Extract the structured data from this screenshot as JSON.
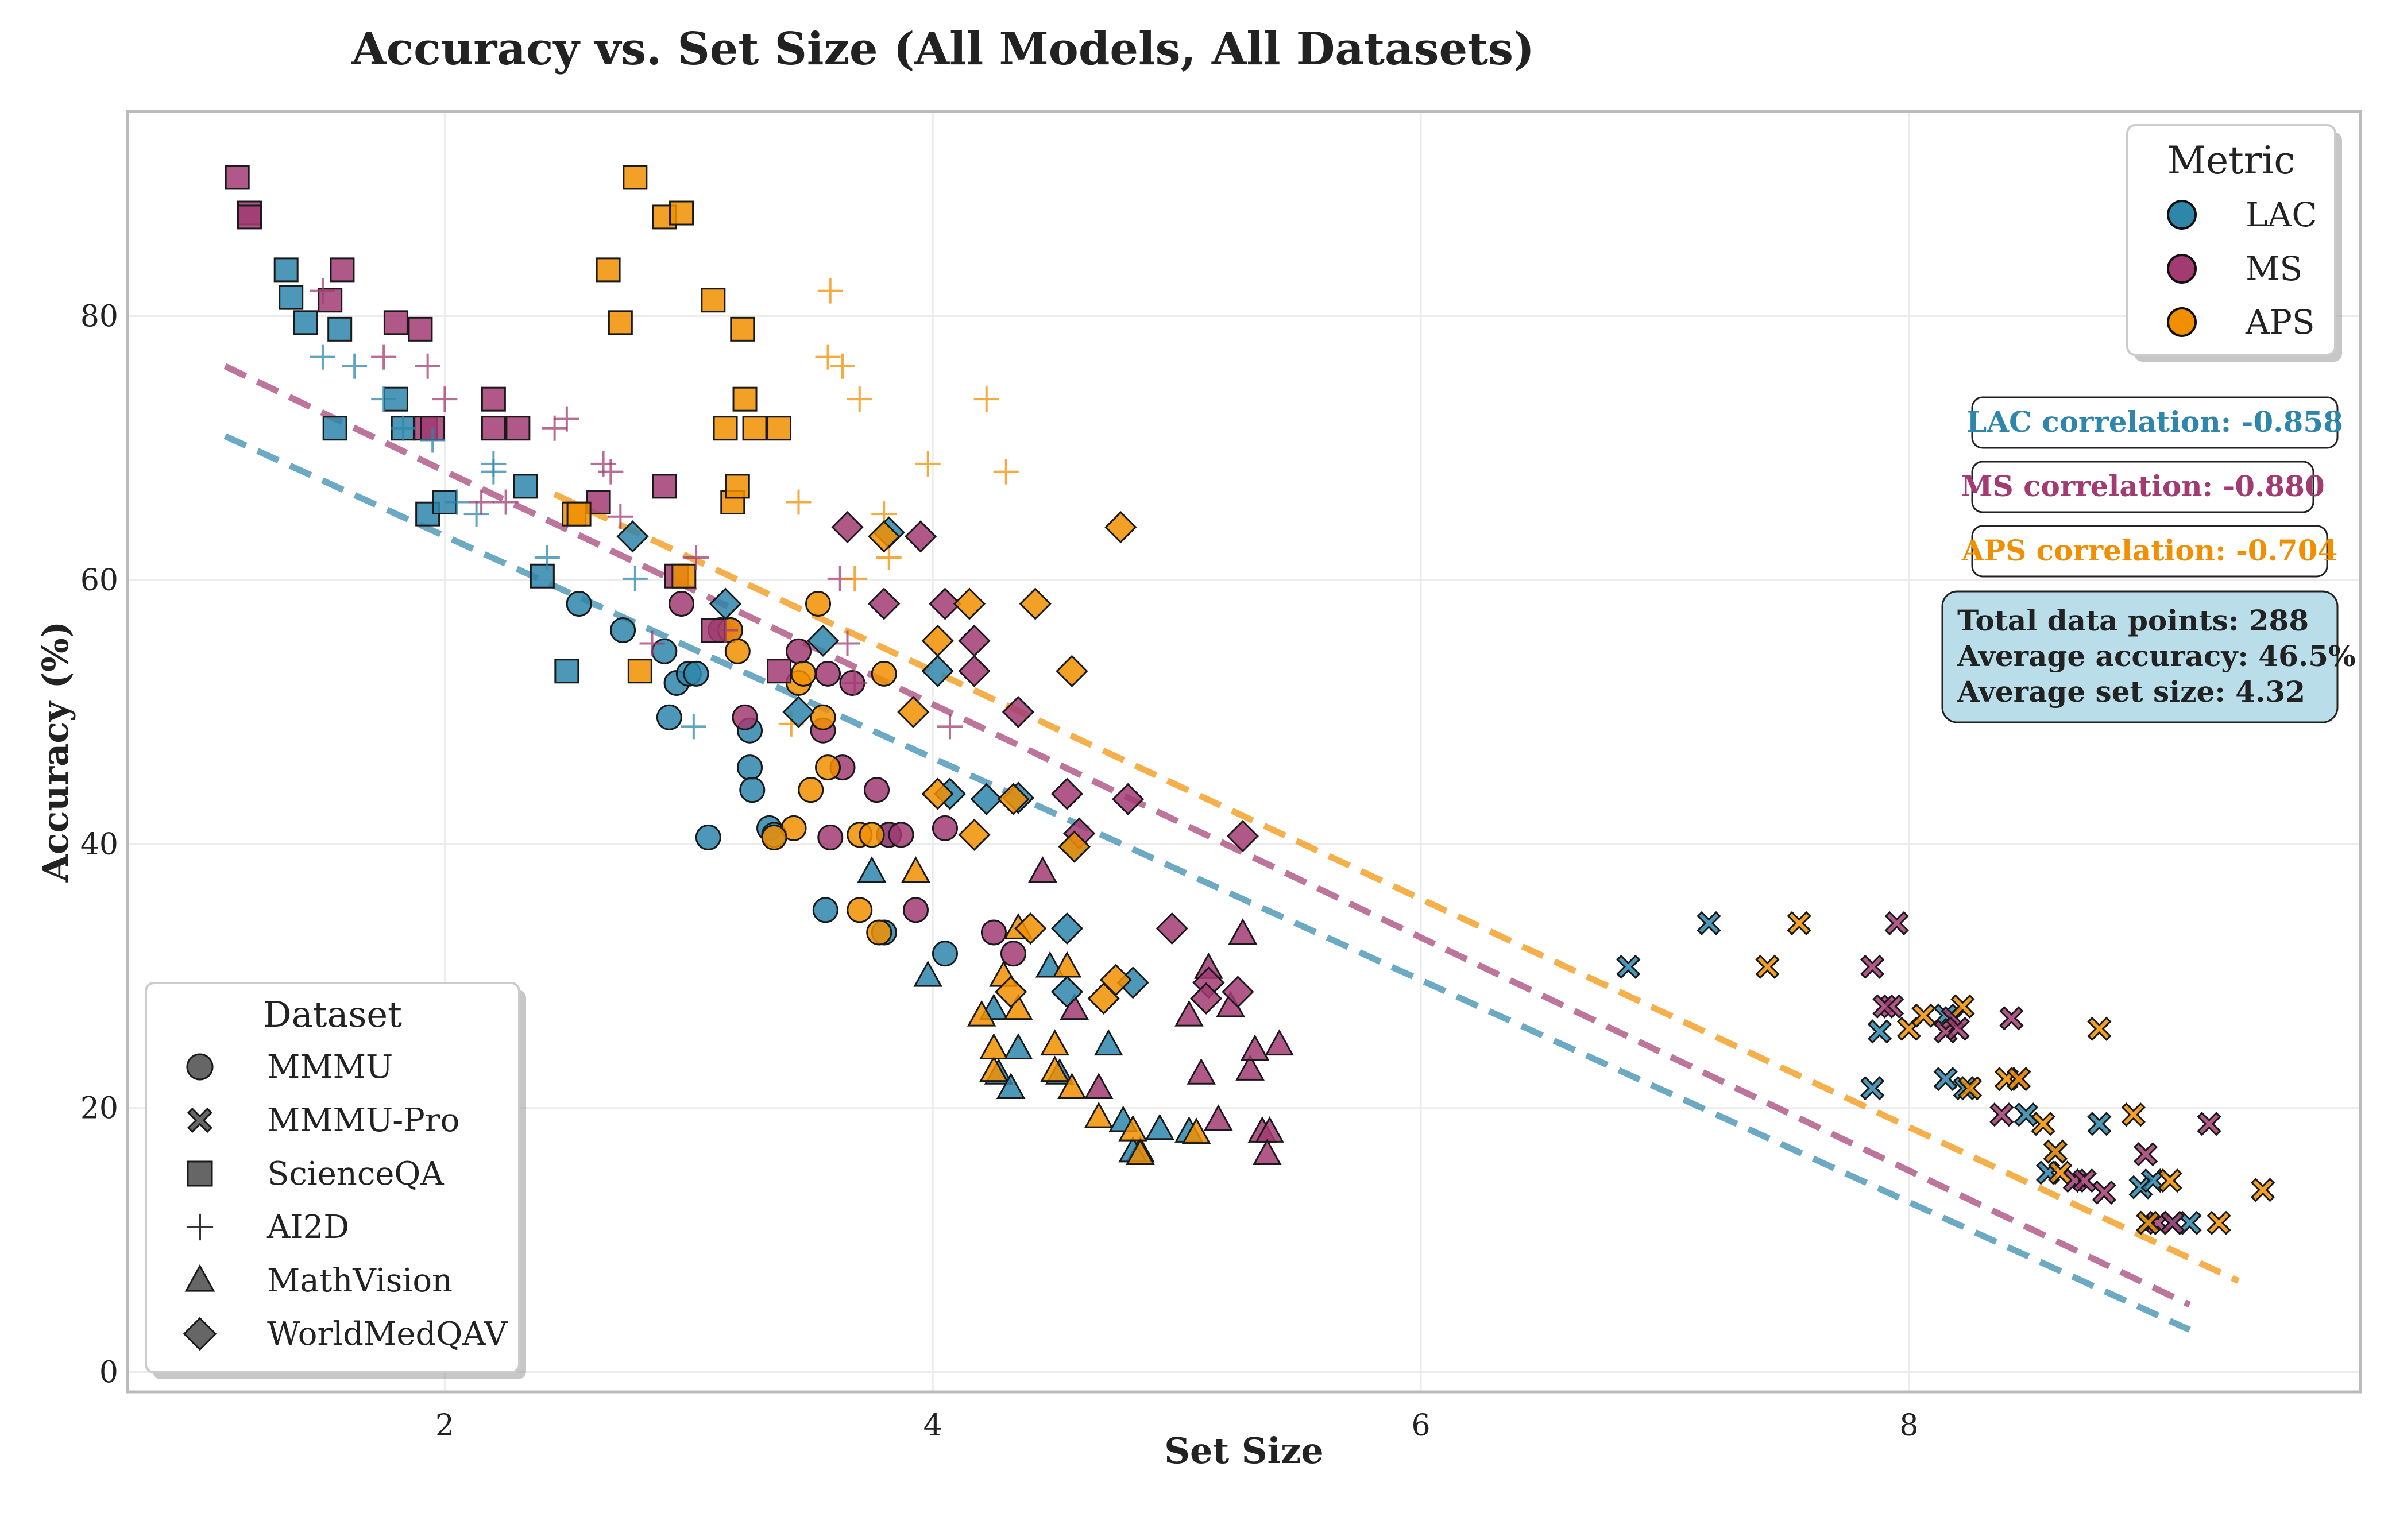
{
  "chart_data": {
    "type": "scatter",
    "title": "Accuracy vs. Set Size (All Models, All Datasets)",
    "xlabel": "Set Size",
    "ylabel": "Accuracy (%)",
    "xlim": [
      0.7,
      9.85
    ],
    "ylim": [
      -1.5,
      95.5
    ],
    "xticks": [
      2,
      4,
      6,
      8
    ],
    "yticks": [
      0,
      20,
      40,
      60,
      80
    ],
    "grid": true,
    "colors": {
      "LAC": "#2E86AB",
      "MS": "#A23B72",
      "APS": "#F18F01"
    },
    "metric_legend": {
      "title": "Metric",
      "position": "top-right",
      "entries": [
        "LAC",
        "MS",
        "APS"
      ]
    },
    "dataset_legend": {
      "title": "Dataset",
      "position": "bottom-left",
      "entries": [
        {
          "label": "MMMU",
          "marker": "circle"
        },
        {
          "label": "MMMU-Pro",
          "marker": "x"
        },
        {
          "label": "ScienceQA",
          "marker": "square"
        },
        {
          "label": "AI2D",
          "marker": "plus"
        },
        {
          "label": "MathVision",
          "marker": "triangle"
        },
        {
          "label": "WorldMedQAV",
          "marker": "diamond"
        }
      ]
    },
    "correlations": [
      {
        "metric": "LAC",
        "label": "LAC correlation: -0.858"
      },
      {
        "metric": "MS",
        "label": "MS correlation: -0.880"
      },
      {
        "metric": "APS",
        "label": "APS correlation: -0.704"
      }
    ],
    "stats": {
      "total": "Total data points: 288",
      "avg_accuracy": "Average accuracy: 46.5%",
      "avg_set_size": "Average set size: 4.32"
    },
    "trendlines": [
      {
        "metric": "LAC",
        "x": [
          1.1,
          9.15
        ],
        "y": [
          70.9,
          3.2
        ]
      },
      {
        "metric": "MS",
        "x": [
          1.1,
          9.15
        ],
        "y": [
          76.2,
          5.1
        ]
      },
      {
        "metric": "APS",
        "x": [
          2.45,
          9.35
        ],
        "y": [
          66.5,
          6.9
        ]
      }
    ],
    "series": [
      {
        "metric": "LAC",
        "dataset": "MMMU",
        "x": [
          2.55,
          2.73,
          2.9,
          2.95,
          2.92,
          3.0,
          3.03,
          3.25,
          3.25,
          3.26,
          3.33,
          3.35,
          3.08,
          3.56,
          3.82,
          3.8,
          4.05
        ],
        "y": [
          58.2,
          56.2,
          54.6,
          52.2,
          49.6,
          52.9,
          52.9,
          48.6,
          45.8,
          44.1,
          41.2,
          40.7,
          40.5,
          35.0,
          40.7,
          33.3,
          31.7
        ]
      },
      {
        "metric": "MS",
        "dataset": "MMMU",
        "x": [
          2.97,
          3.13,
          3.17,
          3.23,
          3.45,
          3.57,
          3.55,
          3.67,
          3.63,
          3.77,
          3.82,
          3.87,
          3.93,
          4.05,
          4.25,
          4.33,
          3.58
        ],
        "y": [
          58.2,
          56.2,
          56.2,
          49.6,
          54.6,
          52.9,
          48.6,
          52.2,
          45.8,
          44.1,
          40.7,
          40.7,
          35.0,
          41.2,
          33.3,
          31.7,
          40.5
        ]
      },
      {
        "metric": "APS",
        "dataset": "MMMU",
        "x": [
          3.17,
          3.2,
          3.43,
          3.45,
          3.5,
          3.53,
          3.55,
          3.47,
          3.57,
          3.8,
          3.35,
          3.7,
          3.75,
          3.7,
          3.78
        ],
        "y": [
          56.2,
          54.6,
          41.2,
          52.2,
          44.1,
          58.2,
          49.6,
          52.9,
          45.8,
          52.9,
          40.5,
          40.7,
          40.7,
          35.0,
          33.3
        ]
      },
      {
        "metric": "LAC",
        "dataset": "MMMU-Pro",
        "x": [
          6.85,
          7.18,
          7.85,
          7.88,
          8.15,
          8.15,
          8.23,
          8.48,
          8.57,
          8.6,
          8.78,
          8.95,
          8.98,
          9.0,
          9.15,
          9.08
        ],
        "y": [
          30.7,
          34.0,
          21.5,
          25.8,
          27.0,
          22.2,
          21.5,
          19.5,
          15.1,
          16.7,
          18.8,
          14.0,
          11.3,
          14.5,
          11.3,
          11.3
        ]
      },
      {
        "metric": "MS",
        "dataset": "MMMU-Pro",
        "x": [
          7.85,
          7.93,
          7.9,
          7.95,
          8.15,
          8.18,
          8.2,
          8.38,
          8.42,
          8.45,
          8.68,
          8.72,
          8.8,
          8.97,
          9.02,
          9.08,
          9.23
        ],
        "y": [
          30.7,
          27.7,
          27.7,
          34.0,
          25.8,
          26.8,
          26.0,
          19.5,
          26.8,
          22.2,
          14.5,
          14.5,
          13.6,
          16.5,
          11.3,
          11.3,
          18.8
        ]
      },
      {
        "metric": "APS",
        "dataset": "MMMU-Pro",
        "x": [
          7.42,
          7.55,
          8.0,
          8.06,
          8.22,
          8.25,
          8.4,
          8.45,
          8.55,
          8.6,
          8.62,
          8.78,
          8.92,
          8.98,
          9.07,
          9.27,
          9.45
        ],
        "y": [
          30.7,
          34.0,
          26.0,
          27.0,
          27.7,
          21.5,
          22.2,
          22.2,
          18.8,
          16.7,
          15.1,
          26.0,
          19.5,
          11.3,
          14.5,
          11.3,
          13.8
        ]
      },
      {
        "metric": "LAC",
        "dataset": "ScienceQA",
        "x": [
          1.35,
          1.37,
          1.43,
          1.57,
          1.55,
          1.8,
          1.83,
          1.93,
          2.0,
          2.33,
          2.4,
          2.5
        ],
        "y": [
          83.5,
          81.4,
          79.5,
          79.0,
          71.5,
          73.7,
          71.5,
          65.0,
          65.9,
          67.1,
          60.3,
          53.1
        ]
      },
      {
        "metric": "MS",
        "dataset": "ScienceQA",
        "x": [
          1.15,
          1.2,
          1.2,
          1.53,
          1.58,
          1.8,
          1.9,
          1.92,
          1.95,
          2.2,
          2.2,
          2.3,
          2.63,
          2.9,
          2.95,
          3.1,
          3.37
        ],
        "y": [
          90.5,
          87.8,
          87.5,
          81.2,
          83.5,
          79.5,
          79.0,
          71.5,
          71.5,
          73.7,
          71.5,
          71.5,
          65.9,
          67.1,
          60.3,
          56.2,
          53.1
        ]
      },
      {
        "metric": "APS",
        "dataset": "ScienceQA",
        "x": [
          2.53,
          2.55,
          2.67,
          2.72,
          2.78,
          2.8,
          2.9,
          2.97,
          2.98,
          3.1,
          3.15,
          3.18,
          3.2,
          3.22,
          3.23,
          3.27,
          3.37
        ],
        "y": [
          65.0,
          65.0,
          83.5,
          79.5,
          90.5,
          53.1,
          87.5,
          87.8,
          60.3,
          81.2,
          71.5,
          65.9,
          67.1,
          79.0,
          73.7,
          71.5,
          71.5
        ]
      },
      {
        "metric": "LAC",
        "dataset": "AI2D",
        "x": [
          1.5,
          1.63,
          1.75,
          1.83,
          1.95,
          2.05,
          2.13,
          2.2,
          2.2,
          2.42,
          2.78,
          3.02
        ],
        "y": [
          76.9,
          76.2,
          73.7,
          71.5,
          70.6,
          65.9,
          65.0,
          68.8,
          68.2,
          61.7,
          60.1,
          48.9
        ]
      },
      {
        "metric": "MS",
        "dataset": "AI2D",
        "x": [
          1.5,
          1.75,
          1.93,
          2.0,
          2.15,
          2.25,
          2.45,
          2.5,
          2.65,
          2.68,
          2.72,
          2.85,
          3.03,
          3.15,
          3.62,
          3.65,
          3.68,
          4.07
        ],
        "y": [
          81.9,
          76.9,
          76.2,
          73.7,
          65.9,
          65.9,
          71.5,
          72.2,
          68.8,
          68.2,
          64.8,
          55.2,
          61.7,
          56.2,
          60.1,
          55.2,
          52.2,
          48.9
        ]
      },
      {
        "metric": "APS",
        "dataset": "AI2D",
        "x": [
          3.42,
          3.45,
          3.58,
          3.57,
          3.63,
          3.68,
          3.7,
          3.8,
          3.82,
          3.98,
          4.22,
          4.3
        ],
        "y": [
          49.1,
          65.9,
          81.9,
          76.9,
          76.2,
          60.1,
          73.7,
          65.0,
          61.7,
          68.8,
          73.7,
          68.2
        ]
      },
      {
        "metric": "LAC",
        "dataset": "MathVision",
        "x": [
          3.75,
          3.98,
          4.25,
          4.27,
          4.35,
          4.32,
          4.48,
          4.52,
          4.72,
          4.78,
          4.85,
          4.93,
          5.05,
          4.82
        ],
        "y": [
          37.9,
          30.0,
          27.5,
          22.6,
          24.5,
          21.5,
          30.7,
          22.6,
          24.8,
          19.0,
          16.7,
          18.4,
          18.2,
          16.7
        ]
      },
      {
        "metric": "MS",
        "dataset": "MathVision",
        "x": [
          4.45,
          4.58,
          4.68,
          5.05,
          5.1,
          5.13,
          5.17,
          5.22,
          5.27,
          5.3,
          5.32,
          5.35,
          5.38,
          5.42,
          5.37
        ],
        "y": [
          37.9,
          27.5,
          21.5,
          27.0,
          22.6,
          30.6,
          19.1,
          27.7,
          33.2,
          22.9,
          24.4,
          18.2,
          18.2,
          24.8,
          16.5
        ]
      },
      {
        "metric": "APS",
        "dataset": "MathVision",
        "x": [
          3.93,
          4.2,
          4.25,
          4.25,
          4.29,
          4.35,
          4.35,
          4.55,
          4.5,
          4.5,
          4.57,
          4.68,
          4.82,
          4.85,
          5.08
        ],
        "y": [
          37.9,
          27.0,
          22.8,
          24.5,
          30.0,
          33.6,
          27.5,
          30.7,
          22.8,
          24.8,
          21.5,
          19.3,
          18.3,
          16.5,
          18.1
        ]
      },
      {
        "metric": "LAC",
        "dataset": "WorldMedQAV",
        "x": [
          2.77,
          3.15,
          3.45,
          3.55,
          3.82,
          4.02,
          4.07,
          4.22,
          4.35,
          4.55,
          4.55,
          4.58,
          4.82
        ],
        "y": [
          63.3,
          58.2,
          50.0,
          55.4,
          63.6,
          53.1,
          43.8,
          43.4,
          43.5,
          33.6,
          28.8,
          39.8,
          29.5
        ]
      },
      {
        "metric": "MS",
        "dataset": "WorldMedQAV",
        "x": [
          3.65,
          3.8,
          3.95,
          4.05,
          4.17,
          4.17,
          4.35,
          4.55,
          4.6,
          4.8,
          4.98,
          5.13,
          5.25,
          5.27,
          5.12
        ],
        "y": [
          64.0,
          58.2,
          63.3,
          58.2,
          55.4,
          53.1,
          50.0,
          43.8,
          40.8,
          43.4,
          33.6,
          29.5,
          28.8,
          40.6,
          28.3
        ]
      },
      {
        "metric": "APS",
        "dataset": "WorldMedQAV",
        "x": [
          3.8,
          3.92,
          4.02,
          4.02,
          4.15,
          4.17,
          4.33,
          4.32,
          4.4,
          4.42,
          4.57,
          4.58,
          4.7,
          4.75,
          4.77
        ],
        "y": [
          63.3,
          50.0,
          55.4,
          43.8,
          58.2,
          40.7,
          43.4,
          28.8,
          33.6,
          58.2,
          53.1,
          39.8,
          28.3,
          29.7,
          64.0
        ]
      }
    ]
  }
}
